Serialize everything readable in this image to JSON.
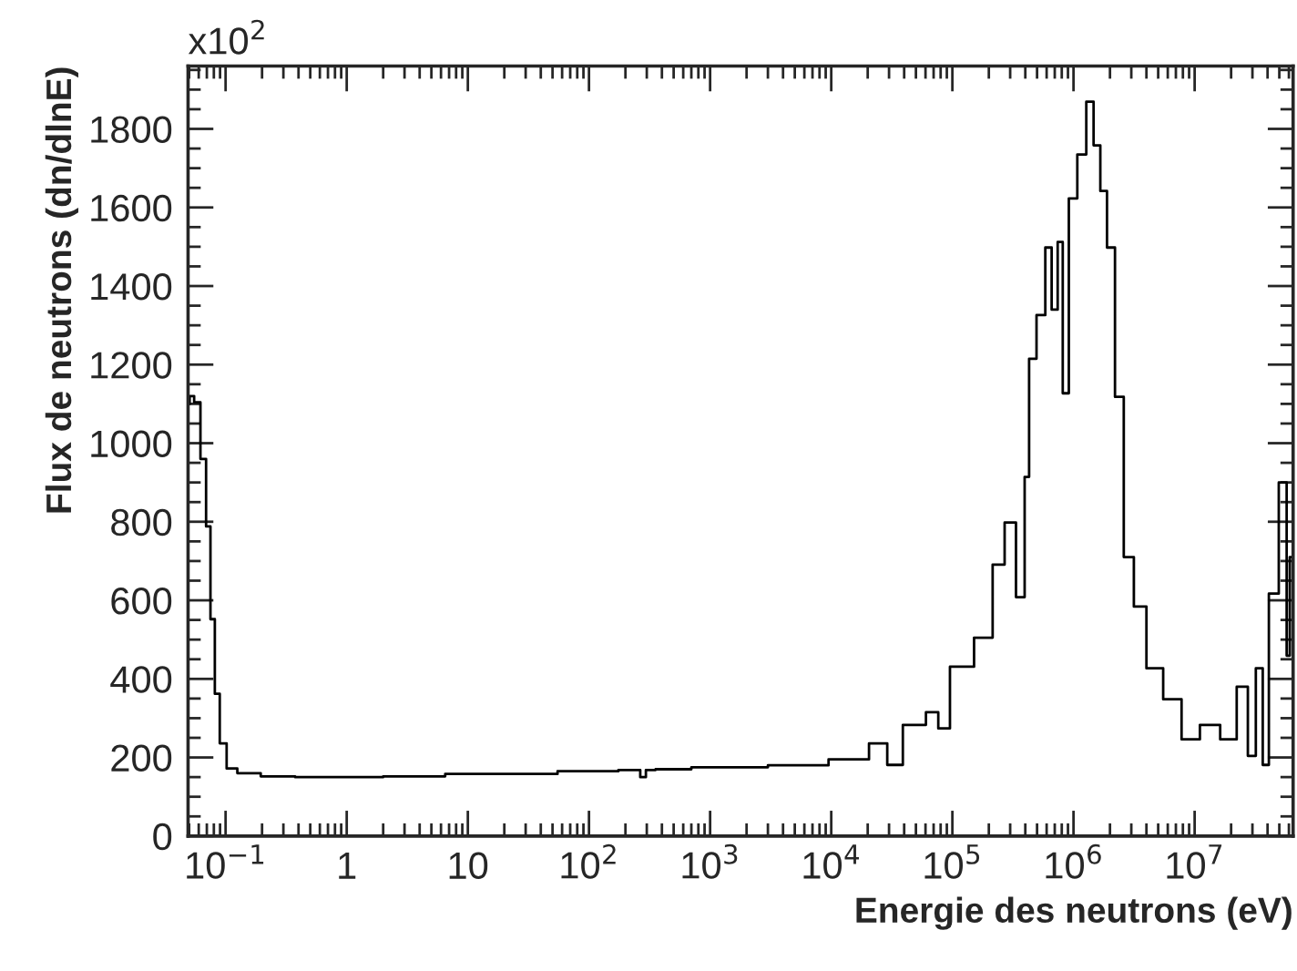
{
  "chart_data": {
    "type": "step",
    "xlabel": "Energie des neutrons (eV)",
    "ylabel": "Flux de neutrons (dn/dlnE)",
    "annotations": [
      "x10$^{2}$"
    ],
    "log": "x",
    "grid": false,
    "marker": "none",
    "line_style": "solid",
    "xlim": [
      0.049,
      65000000
    ],
    "ylim": [
      0,
      1960
    ],
    "xticks": [
      {
        "value": 0.1,
        "label": "10$^{−1}$"
      },
      1,
      10,
      {
        "value": 100,
        "label": "10$^{2}$"
      },
      {
        "value": 1000,
        "label": "10$^{3}$"
      },
      {
        "value": 10000,
        "label": "10$^{4}$"
      },
      {
        "value": 100000,
        "label": "10$^{5}$"
      },
      {
        "value": 1000000,
        "label": "10$^{6}$"
      },
      {
        "value": 10000000,
        "label": "10$^{7}$"
      }
    ],
    "yticks": [
      0,
      200,
      400,
      600,
      800,
      1000,
      1200,
      1400,
      1600,
      1800
    ],
    "series": [
      {
        "color": "#000000",
        "x": [
          0.049,
          0.052,
          0.058,
          0.066,
          0.072,
          0.078,
          0.085,
          0.094,
          0.11,
          0.14,
          0.25,
          0.5,
          1,
          3,
          10,
          100,
          250,
          280,
          310,
          400,
          1000,
          5000,
          14000,
          27000,
          31000,
          47000,
          74000,
          79000,
          112000,
          190000,
          240000,
          300000,
          370000,
          420000,
          440000,
          550000,
          620000,
          700000,
          780000,
          850000,
          980000,
          1170000,
          1380000,
          1550000,
          1780000,
          2000000,
          2400000,
          2800000,
          3500000,
          4500000,
          6500000,
          9100000,
          13000000,
          19500000,
          25000000,
          30000000,
          34000000,
          39000000,
          43000000,
          56000000,
          59000000,
          63000000
        ],
        "values": [
          1100,
          1120,
          1104,
          960,
          788,
          552,
          362,
          236,
          172,
          160,
          152,
          150,
          150,
          152,
          158,
          165,
          168,
          150,
          168,
          170,
          175,
          180,
          195,
          236,
          181,
          283,
          315,
          274,
          431,
          505,
          691,
          798,
          608,
          914,
          1215,
          1326,
          1498,
          1340,
          1512,
          1127,
          1623,
          1735,
          1869,
          1758,
          1642,
          1498,
          1118,
          710,
          584,
          427,
          348,
          246,
          283,
          246,
          380,
          204,
          427,
          181,
          617,
          900,
          459,
          710
        ]
      }
    ]
  }
}
